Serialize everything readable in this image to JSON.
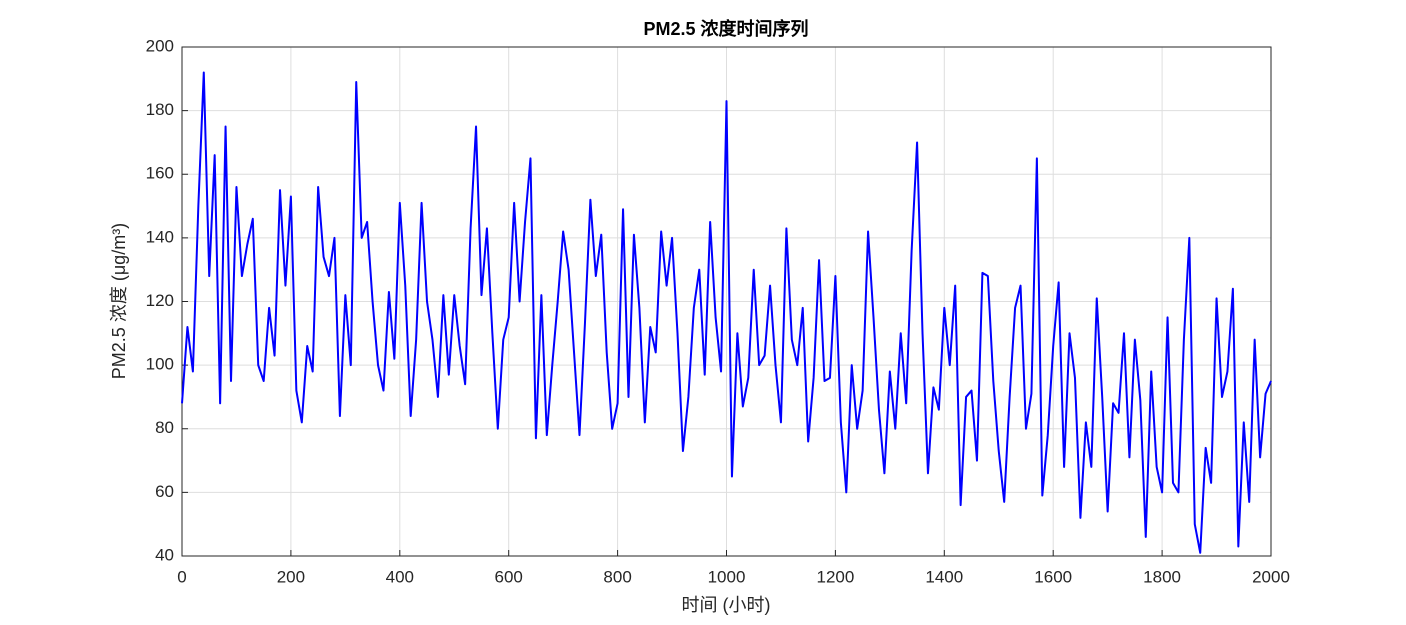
{
  "chart_data": {
    "type": "line",
    "title": "PM2.5 浓度时间序列",
    "xlabel": "时间 (小时)",
    "ylabel": "PM2.5 浓度 (μg/m³)",
    "x": [
      0,
      10,
      20,
      30,
      40,
      50,
      60,
      70,
      80,
      90,
      100,
      110,
      120,
      130,
      140,
      150,
      160,
      170,
      180,
      190,
      200,
      210,
      220,
      230,
      240,
      250,
      260,
      270,
      280,
      290,
      300,
      310,
      320,
      330,
      340,
      350,
      360,
      370,
      380,
      390,
      400,
      410,
      420,
      430,
      440,
      450,
      460,
      470,
      480,
      490,
      500,
      510,
      520,
      530,
      540,
      550,
      560,
      570,
      580,
      590,
      600,
      610,
      620,
      630,
      640,
      650,
      660,
      670,
      680,
      690,
      700,
      710,
      720,
      730,
      740,
      750,
      760,
      770,
      780,
      790,
      800,
      810,
      820,
      830,
      840,
      850,
      860,
      870,
      880,
      890,
      900,
      910,
      920,
      930,
      940,
      950,
      960,
      970,
      980,
      990,
      1000,
      1010,
      1020,
      1030,
      1040,
      1050,
      1060,
      1070,
      1080,
      1090,
      1100,
      1110,
      1120,
      1130,
      1140,
      1150,
      1160,
      1170,
      1180,
      1190,
      1200,
      1210,
      1220,
      1230,
      1240,
      1250,
      1260,
      1270,
      1280,
      1290,
      1300,
      1310,
      1320,
      1330,
      1340,
      1350,
      1360,
      1370,
      1380,
      1390,
      1400,
      1410,
      1420,
      1430,
      1440,
      1450,
      1460,
      1470,
      1480,
      1490,
      1500,
      1510,
      1520,
      1530,
      1540,
      1550,
      1560,
      1570,
      1580,
      1590,
      1600,
      1610,
      1620,
      1630,
      1640,
      1650,
      1660,
      1670,
      1680,
      1690,
      1700,
      1710,
      1720,
      1730,
      1740,
      1750,
      1760,
      1770,
      1780,
      1790,
      1800,
      1810,
      1820,
      1830,
      1840,
      1850,
      1860,
      1870,
      1880,
      1890,
      1900,
      1910,
      1920,
      1930,
      1940,
      1950,
      1960,
      1970,
      1980,
      1990,
      2000
    ],
    "series": [
      {
        "name": "PM2.5",
        "color": "#0000ff",
        "values": [
          88,
          112,
          98,
          150,
          192,
          128,
          166,
          88,
          175,
          95,
          156,
          128,
          138,
          146,
          100,
          95,
          118,
          103,
          155,
          125,
          153,
          92,
          82,
          106,
          98,
          156,
          134,
          128,
          140,
          84,
          122,
          100,
          189,
          140,
          145,
          120,
          100,
          92,
          123,
          102,
          151,
          125,
          84,
          108,
          151,
          120,
          108,
          90,
          122,
          97,
          122,
          106,
          94,
          143,
          175,
          122,
          143,
          110,
          80,
          108,
          115,
          151,
          120,
          145,
          165,
          77,
          122,
          78,
          100,
          120,
          142,
          130,
          104,
          78,
          113,
          152,
          128,
          141,
          104,
          80,
          88,
          149,
          90,
          141,
          118,
          82,
          112,
          104,
          142,
          125,
          140,
          110,
          73,
          90,
          118,
          130,
          97,
          145,
          115,
          98,
          183,
          65,
          110,
          87,
          96,
          130,
          100,
          103,
          125,
          100,
          82,
          143,
          108,
          100,
          118,
          76,
          96,
          133,
          95,
          96,
          128,
          82,
          60,
          100,
          80,
          92,
          142,
          115,
          86,
          66,
          98,
          80,
          110,
          88,
          136,
          170,
          110,
          66,
          93,
          86,
          118,
          100,
          125,
          56,
          90,
          92,
          70,
          129,
          128,
          95,
          73,
          57,
          90,
          118,
          125,
          80,
          91,
          165,
          59,
          78,
          106,
          126,
          68,
          110,
          96,
          52,
          82,
          68,
          121,
          90,
          54,
          88,
          85,
          110,
          71,
          108,
          89,
          46,
          98,
          68,
          60,
          115,
          63,
          60,
          108,
          140,
          50,
          41,
          74,
          63,
          121,
          90,
          98,
          124,
          43,
          82,
          57,
          108,
          71,
          91,
          95
        ]
      }
    ],
    "xlim": [
      0,
      2000
    ],
    "xticks": [
      0,
      200,
      400,
      600,
      800,
      1000,
      1200,
      1400,
      1600,
      1800,
      2000
    ],
    "ylim": [
      40,
      200
    ],
    "yticks": [
      40,
      60,
      80,
      100,
      120,
      140,
      160,
      180,
      200
    ],
    "grid": true
  }
}
